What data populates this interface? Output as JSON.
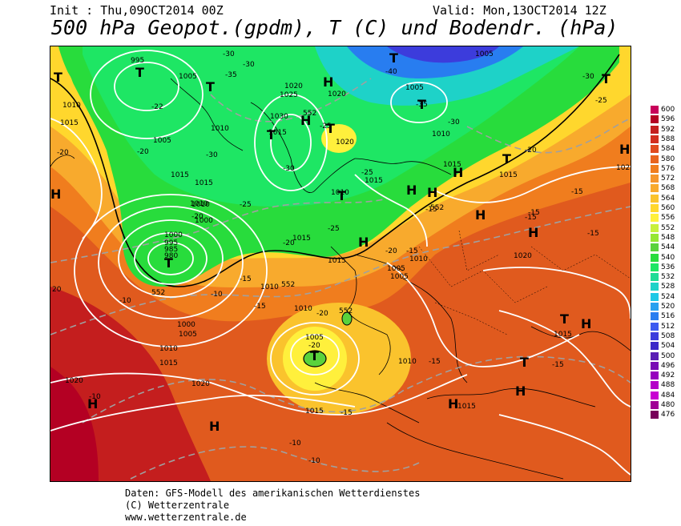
{
  "header": {
    "init": "Init : Thu,09OCT2014 00Z",
    "valid": "Valid: Mon,13OCT2014 12Z",
    "title": "500 hPa Geopot.(gpdm), T (C) und Bodendr. (hPa)"
  },
  "scale": {
    "levels": [
      {
        "value": "600",
        "color": "#c8005a"
      },
      {
        "value": "596",
        "color": "#b40023"
      },
      {
        "value": "592",
        "color": "#c41e1e"
      },
      {
        "value": "588",
        "color": "#d22d1e"
      },
      {
        "value": "584",
        "color": "#e04b1e"
      },
      {
        "value": "580",
        "color": "#e8641e"
      },
      {
        "value": "576",
        "color": "#f07d1e"
      },
      {
        "value": "572",
        "color": "#f5962d"
      },
      {
        "value": "568",
        "color": "#f8aa2d"
      },
      {
        "value": "564",
        "color": "#fac32d"
      },
      {
        "value": "560",
        "color": "#ffd72d"
      },
      {
        "value": "556",
        "color": "#fff03c"
      },
      {
        "value": "552",
        "color": "#c8f03c"
      },
      {
        "value": "548",
        "color": "#96e632"
      },
      {
        "value": "544",
        "color": "#5ad23c"
      },
      {
        "value": "540",
        "color": "#28dc3c"
      },
      {
        "value": "536",
        "color": "#1ee664"
      },
      {
        "value": "532",
        "color": "#1edc96"
      },
      {
        "value": "528",
        "color": "#1ed2c8"
      },
      {
        "value": "524",
        "color": "#1ec8e6"
      },
      {
        "value": "520",
        "color": "#28a0f0"
      },
      {
        "value": "516",
        "color": "#287df0"
      },
      {
        "value": "512",
        "color": "#3c5af0"
      },
      {
        "value": "508",
        "color": "#3c3cdc"
      },
      {
        "value": "504",
        "color": "#3c28c8"
      },
      {
        "value": "500",
        "color": "#5a1eb4"
      },
      {
        "value": "496",
        "color": "#780ab4"
      },
      {
        "value": "492",
        "color": "#9600be"
      },
      {
        "value": "488",
        "color": "#b400c8"
      },
      {
        "value": "484",
        "color": "#c800d2"
      },
      {
        "value": "480",
        "color": "#a00096"
      },
      {
        "value": "476",
        "color": "#78005a"
      }
    ]
  },
  "map": {
    "pressure_labels": [
      "995",
      "1005",
      "1010",
      "1015",
      "1010",
      "1005",
      "1020",
      "1025",
      "1030",
      "1015",
      "1020",
      "1020",
      "1005",
      "1010",
      "1015",
      "1015",
      "1010",
      "1015",
      "1005",
      "1010",
      "1015",
      "1000",
      "995",
      "985",
      "980",
      "1010",
      "1015",
      "1010",
      "1005",
      "1010",
      "1015",
      "1000",
      "1005",
      "1010",
      "1015",
      "1020",
      "1020",
      "1015",
      "1005",
      "1010",
      "1010",
      "1020",
      "1015",
      "1015",
      "1015",
      "102",
      "20",
      "1000",
      "1005"
    ],
    "temp_labels": [
      "-30",
      "-35",
      "-30",
      "-40",
      "-35",
      "-30",
      "-30",
      "-25",
      "-22",
      "-20",
      "-30",
      "-25",
      "-30",
      "-25",
      "-20",
      "-25",
      "-25",
      "-20",
      "-20",
      "-15",
      "-15",
      "-15",
      "-10",
      "-10",
      "-10",
      "-15",
      "-15",
      "-15",
      "-15",
      "-15",
      "-20",
      "-20",
      "-20",
      "-15",
      "-15",
      "-20",
      "-15",
      "-10",
      "-10"
    ],
    "gpdm_labels": [
      "552",
      "552",
      "552",
      "552",
      "552"
    ],
    "highs": [
      "H",
      "H",
      "H",
      "H",
      "H",
      "H",
      "H",
      "H",
      "H",
      "H",
      "H",
      "H",
      "H",
      "H",
      "H"
    ],
    "lows": [
      "T",
      "T",
      "T",
      "T",
      "T",
      "T",
      "T",
      "T",
      "T",
      "T",
      "T",
      "T",
      "T",
      "T"
    ]
  },
  "footer": {
    "line1": "Daten: GFS-Modell des amerikanischen Wetterdienstes",
    "line2": "(C) Wetterzentrale",
    "line3": "www.wetterzentrale.de"
  },
  "colors": {
    "border": "#000000",
    "isobar": "#ffffff",
    "isotherm": "#a0a0a0"
  }
}
